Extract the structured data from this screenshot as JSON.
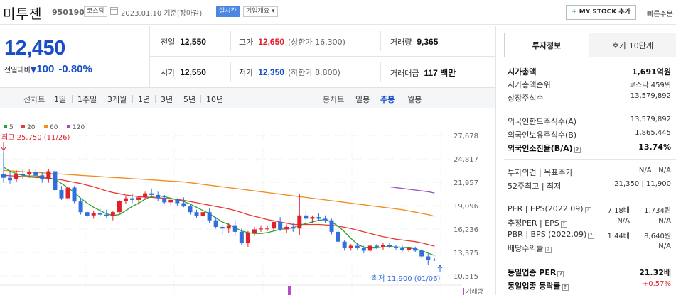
{
  "header": {
    "name": "미투젠",
    "code": "950190",
    "market": "코스닥",
    "date": "2023.01.10 기준(장마감)",
    "live": "실시간",
    "company_overview": "기업개요 ▾",
    "mystock_plus": "+",
    "mystock": "MY STOCK 추가",
    "quick_order": "빠른주문"
  },
  "price": {
    "current": "12,450",
    "change_label": "전일대비",
    "change_arrow": "▼",
    "change_amount": "100",
    "change_pct": "-0.80%"
  },
  "summary": {
    "prev_close_label": "전일",
    "prev_close": "12,550",
    "high_label": "고가",
    "high": "12,650",
    "upper_limit": "(상한가 16,300)",
    "volume_label": "거래량",
    "volume": "9,365",
    "open_label": "시가",
    "open": "12,550",
    "low_label": "저가",
    "low": "12,350",
    "lower_limit": "(하한가 8,800)",
    "amount_label": "거래대금",
    "amount": "117 백만"
  },
  "period_bar": {
    "line_label": "선차트",
    "line_options": [
      "1일",
      "1주일",
      "3개월",
      "1년",
      "3년",
      "5년",
      "10년"
    ],
    "candle_label": "봉차트",
    "candle_options": [
      "일봉",
      "주봉",
      "월봉"
    ],
    "candle_selected": "주봉"
  },
  "chart_data": {
    "type": "candlestick",
    "legend": [
      {
        "name": "5",
        "color": "#2ca02c"
      },
      {
        "name": "20",
        "color": "#e8382f"
      },
      {
        "name": "60",
        "color": "#f08c1a"
      },
      {
        "name": "120",
        "color": "#9b4fc4"
      }
    ],
    "y_ticks": [
      "27,678",
      "24,817",
      "21,957",
      "19,096",
      "16,236",
      "13,375",
      "10,515"
    ],
    "ylim": [
      10515,
      27678
    ],
    "max_label": "최고 25,750 (11/26)",
    "min_label": "최저 11,900 (01/06)",
    "volume_label": "거래량",
    "candles": [
      [
        23000,
        25750,
        21900,
        22500
      ],
      [
        22500,
        23300,
        21800,
        22200
      ],
      [
        22300,
        23400,
        22000,
        23000
      ],
      [
        23000,
        23500,
        22300,
        22800
      ],
      [
        22900,
        23500,
        22500,
        23200
      ],
      [
        23200,
        23500,
        22500,
        22800
      ],
      [
        22800,
        23200,
        21900,
        22300
      ],
      [
        22300,
        23600,
        21900,
        23300
      ],
      [
        23300,
        23300,
        20900,
        21000
      ],
      [
        21000,
        21500,
        19800,
        20000
      ],
      [
        20000,
        21600,
        19600,
        21300
      ],
      [
        21300,
        21500,
        19400,
        19600
      ],
      [
        19600,
        20000,
        18000,
        18300
      ],
      [
        18300,
        18500,
        17500,
        17800
      ],
      [
        17900,
        18500,
        17500,
        18200
      ],
      [
        18200,
        18700,
        17800,
        18000
      ],
      [
        18000,
        18600,
        17600,
        17800
      ],
      [
        17800,
        18500,
        17300,
        18300
      ],
      [
        18300,
        19800,
        18000,
        19700
      ],
      [
        19700,
        20300,
        19300,
        20000
      ],
      [
        20000,
        20500,
        19400,
        19800
      ],
      [
        19800,
        20200,
        19200,
        20100
      ],
      [
        20100,
        20800,
        19800,
        20600
      ],
      [
        20600,
        21200,
        20200,
        20400
      ],
      [
        20400,
        20800,
        19700,
        20000
      ],
      [
        20000,
        20400,
        19300,
        19500
      ],
      [
        19500,
        20000,
        19000,
        19800
      ],
      [
        19800,
        20000,
        19100,
        19400
      ],
      [
        19400,
        20100,
        18900,
        19000
      ],
      [
        19000,
        19300,
        18000,
        18300
      ],
      [
        18300,
        18600,
        17600,
        17800
      ],
      [
        17800,
        18500,
        17400,
        18300
      ],
      [
        18300,
        18800,
        17000,
        17300
      ],
      [
        17300,
        17700,
        16300,
        16500
      ],
      [
        16500,
        16800,
        15500,
        16300
      ],
      [
        16300,
        17000,
        15800,
        16700
      ],
      [
        16700,
        17300,
        15600,
        15900
      ],
      [
        15900,
        16300,
        14300,
        14500
      ],
      [
        14500,
        16000,
        14000,
        15800
      ],
      [
        15800,
        16500,
        15400,
        16200
      ],
      [
        16200,
        16700,
        15900,
        16300
      ],
      [
        16300,
        16700,
        16000,
        16300
      ],
      [
        16300,
        17300,
        16000,
        17100
      ],
      [
        17100,
        17700,
        16000,
        16200
      ],
      [
        16200,
        16800,
        15800,
        16500
      ],
      [
        16500,
        17000,
        15900,
        16300
      ],
      [
        16300,
        20500,
        15500,
        17900
      ],
      [
        17900,
        18400,
        17300,
        17500
      ],
      [
        17500,
        17900,
        17000,
        17700
      ],
      [
        17700,
        18200,
        17300,
        17500
      ],
      [
        17500,
        17900,
        17000,
        17300
      ],
      [
        17300,
        17500,
        15600,
        15900
      ],
      [
        15900,
        16200,
        14400,
        14700
      ],
      [
        14700,
        14900,
        13600,
        13900
      ],
      [
        13900,
        14400,
        13600,
        14200
      ],
      [
        14200,
        14500,
        13700,
        13900
      ],
      [
        13900,
        14200,
        13300,
        13600
      ],
      [
        13600,
        14300,
        13400,
        14200
      ],
      [
        14200,
        14400,
        13800,
        14000
      ],
      [
        14000,
        14500,
        13700,
        14300
      ],
      [
        14300,
        14600,
        13900,
        14100
      ],
      [
        14100,
        14300,
        13700,
        13900
      ],
      [
        13900,
        14200,
        13500,
        13700
      ],
      [
        13700,
        14000,
        13400,
        13900
      ],
      [
        13900,
        14100,
        13400,
        13600
      ],
      [
        13600,
        13800,
        12600,
        12900
      ],
      [
        12900,
        13200,
        11900,
        12500
      ],
      [
        12500,
        12650,
        12350,
        12450
      ]
    ],
    "ma5": [
      23800,
      23300,
      23000,
      22800,
      22700,
      22750,
      22650,
      22500,
      22300,
      21800,
      21300,
      20700,
      20000,
      19400,
      18900,
      18500,
      18100,
      17900,
      18000,
      18500,
      19000,
      19400,
      19900,
      20200,
      20300,
      20200,
      20000,
      19800,
      19600,
      19300,
      18900,
      18500,
      18100,
      17600,
      17100,
      16800,
      16400,
      16000,
      15800,
      15700,
      15700,
      15800,
      16000,
      16200,
      16300,
      16400,
      16700,
      16900,
      17100,
      17300,
      17400,
      17100,
      16600,
      15900,
      15100,
      14400,
      14000,
      13900,
      13950,
      14050,
      14100,
      14050,
      14000,
      13950,
      13800,
      13600,
      13300,
      13000
    ],
    "ma20": [
      22800,
      22750,
      22700,
      22650,
      22600,
      22550,
      22500,
      22450,
      22350,
      22250,
      22100,
      21950,
      21800,
      21600,
      21400,
      21150,
      20900,
      20700,
      20550,
      20400,
      20300,
      20200,
      20150,
      20100,
      20050,
      20000,
      19950,
      19850,
      19750,
      19600,
      19450,
      19300,
      19150,
      19000,
      18850,
      18700,
      18500,
      18250,
      18000,
      17800,
      17600,
      17400,
      17250,
      17100,
      16950,
      16800,
      16800,
      16800,
      16800,
      16800,
      16750,
      16700,
      16600,
      16450,
      16300,
      16100,
      15900,
      15700,
      15500,
      15300,
      15150,
      15000,
      14900,
      14800,
      14700,
      14550,
      14350,
      14150
    ],
    "ma60": [
      23400,
      23350,
      23300,
      23250,
      23200,
      23150,
      23100,
      23050,
      23000,
      22950,
      22900,
      22850,
      22800,
      22750,
      22700,
      22650,
      22600,
      22550,
      22500,
      22450,
      22400,
      22350,
      22300,
      22250,
      22200,
      22150,
      22100,
      22050,
      22000,
      21900,
      21800,
      21700,
      21600,
      21500,
      21400,
      21300,
      21200,
      21100,
      21000,
      20900,
      20800,
      20700,
      20600,
      20500,
      20400,
      20300,
      20200,
      20100,
      20000,
      19900,
      19800,
      19700,
      19600,
      19500,
      19400,
      19300,
      19200,
      19100,
      19000,
      18900,
      18800,
      18700,
      18600,
      18450,
      18300,
      18150,
      18000,
      17800
    ],
    "ma120": [
      21400,
      21300,
      21200,
      21100,
      21000,
      20900,
      20800,
      20650
    ],
    "ma120_start_index": 60
  },
  "invest": {
    "tab_active": "투자정보",
    "tab_other": "호가 10단계",
    "rows1": [
      {
        "k": "시가총액",
        "v": "1,691억원",
        "bold": true
      },
      {
        "k": "시가총액순위",
        "v": "코스닥 459위"
      },
      {
        "k": "상장주식수",
        "v": "13,579,892"
      }
    ],
    "rows2": [
      {
        "k": "외국인한도주식수(A)",
        "v": "13,579,892"
      },
      {
        "k": "외국인보유주식수(B)",
        "v": "1,865,445"
      },
      {
        "k": "외국인소진율(B/A)",
        "v": "13.74%",
        "bold": true,
        "help": "?"
      }
    ],
    "opinion_k": "투자의견 | 목표주가",
    "opinion_v": "N/A | N/A",
    "w52_k": "52주최고 | 최저",
    "w52_v": "21,350 | 11,900",
    "per_k": "PER | EPS(2022.09)",
    "per_v1": "7.18배",
    "per_v2": "1,734원",
    "eper_k": "추정PER | EPS",
    "eper_v1": "N/A",
    "eper_v2": "N/A",
    "pbr_k": "PBR | BPS (2022.09)",
    "pbr_v1": "1.44배",
    "pbr_v2": "8,640원",
    "div_k": "배당수익률",
    "div_v": "N/A",
    "ind_per_k": "동일업종 PER",
    "ind_per_v": "21.32배",
    "ind_rate_k": "동일업종 등락률",
    "ind_rate_v": "+0.57%",
    "help": "?"
  }
}
